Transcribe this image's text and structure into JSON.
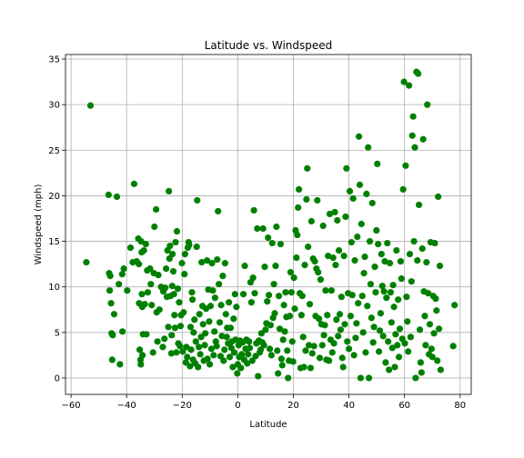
{
  "chart_data": {
    "type": "scatter",
    "title": "Latitude vs. Windspeed",
    "xlabel": "Latitude",
    "ylabel": "Windspeed (mph)",
    "xlim": [
      -62,
      84
    ],
    "ylim": [
      -1.8,
      35.5
    ],
    "xticks": [
      -60,
      -40,
      -20,
      0,
      20,
      40,
      60,
      80
    ],
    "yticks": [
      0,
      5,
      10,
      15,
      20,
      25,
      30,
      35
    ],
    "grid": true,
    "marker_color": "#008000",
    "points": [
      [
        -54.5,
        12.7
      ],
      [
        -53,
        29.9
      ],
      [
        -46.5,
        20.1
      ],
      [
        -46.3,
        11.5
      ],
      [
        -46.1,
        9.6
      ],
      [
        -45.9,
        11.2
      ],
      [
        -45.6,
        8.2
      ],
      [
        -45.4,
        4.9
      ],
      [
        -45.2,
        2.0
      ],
      [
        -45,
        4.7
      ],
      [
        -44.5,
        7.0
      ],
      [
        -43.5,
        19.9
      ],
      [
        -42.8,
        10.3
      ],
      [
        -42.4,
        1.5
      ],
      [
        -41.6,
        11.4
      ],
      [
        -41.5,
        5.1
      ],
      [
        -41,
        12.0
      ],
      [
        -39.8,
        9.6
      ],
      [
        -38.6,
        14.3
      ],
      [
        -37.8,
        12.7
      ],
      [
        -37.3,
        21.3
      ],
      [
        -36.4,
        12.8
      ],
      [
        -35.8,
        15.3
      ],
      [
        -35.6,
        12.5
      ],
      [
        -35.5,
        8.2
      ],
      [
        -35.3,
        3.1
      ],
      [
        -35,
        2.0
      ],
      [
        -34.9,
        1.5
      ],
      [
        -34.8,
        15.0
      ],
      [
        -34.6,
        13.8
      ],
      [
        -34.5,
        9.2
      ],
      [
        -34.4,
        7.8
      ],
      [
        -34.3,
        2.5
      ],
      [
        -34.1,
        4.8
      ],
      [
        -33.8,
        14.0
      ],
      [
        -33.5,
        8.1
      ],
      [
        -33.1,
        14.7
      ],
      [
        -32.9,
        4.8
      ],
      [
        -32.6,
        11.8
      ],
      [
        -32.4,
        9.4
      ],
      [
        -31.6,
        12.0
      ],
      [
        -31.3,
        10.3
      ],
      [
        -31,
        8.0
      ],
      [
        -30.5,
        2.8
      ],
      [
        -30.2,
        11.5
      ],
      [
        -30,
        16.6
      ],
      [
        -29.4,
        18.5
      ],
      [
        -29.2,
        7.2
      ],
      [
        -28.9,
        4.0
      ],
      [
        -28.6,
        11.3
      ],
      [
        -28.2,
        7.5
      ],
      [
        -27.6,
        10.0
      ],
      [
        -27,
        3.4
      ],
      [
        -26.8,
        9.5
      ],
      [
        -26.4,
        4.3
      ],
      [
        -26.1,
        9.9
      ],
      [
        -25.8,
        12.0
      ],
      [
        -25.5,
        8.9
      ],
      [
        -25.3,
        14.0
      ],
      [
        -25,
        5.6
      ],
      [
        -24.8,
        20.5
      ],
      [
        -24.6,
        13.1
      ],
      [
        -24.4,
        14.5
      ],
      [
        -24.2,
        9.0
      ],
      [
        -23.9,
        2.7
      ],
      [
        -23.8,
        4.7
      ],
      [
        -23.6,
        10.1
      ],
      [
        -23.5,
        13.6
      ],
      [
        -23.2,
        11.7
      ],
      [
        -23,
        9.2
      ],
      [
        -22.8,
        6.9
      ],
      [
        -22.6,
        5.5
      ],
      [
        -22.4,
        14.9
      ],
      [
        -22.1,
        2.8
      ],
      [
        -21.9,
        16.1
      ],
      [
        -21.6,
        9.8
      ],
      [
        -21.4,
        3.8
      ],
      [
        -21.1,
        8.3
      ],
      [
        -20.8,
        3.5
      ],
      [
        -20.6,
        5.7
      ],
      [
        -20.4,
        6.9
      ],
      [
        -20.1,
        12.6
      ],
      [
        -19.8,
        2.9
      ],
      [
        -19.5,
        7.2
      ],
      [
        -19.2,
        11.4
      ],
      [
        -19,
        13.6
      ],
      [
        -18.7,
        1.7
      ],
      [
        -18.5,
        3.4
      ],
      [
        -18.2,
        2.3
      ],
      [
        -18,
        14.3
      ],
      [
        -17.7,
        14.9
      ],
      [
        -17.5,
        14.6
      ],
      [
        -17.2,
        1.3
      ],
      [
        -17,
        5.6
      ],
      [
        -16.8,
        3.1
      ],
      [
        -16.5,
        9.4
      ],
      [
        -16.3,
        8.6
      ],
      [
        -16.1,
        2.0
      ],
      [
        -15.9,
        5.0
      ],
      [
        -15.6,
        6.4
      ],
      [
        -15.3,
        1.6
      ],
      [
        -15.1,
        4.0
      ],
      [
        -14.8,
        14.4
      ],
      [
        -14.6,
        19.5
      ],
      [
        -14.3,
        1.2
      ],
      [
        -14,
        3.4
      ],
      [
        -13.8,
        7.0
      ],
      [
        -13.5,
        2.6
      ],
      [
        -13.2,
        4.5
      ],
      [
        -13,
        12.7
      ],
      [
        -12.7,
        7.9
      ],
      [
        -12.5,
        5.9
      ],
      [
        -12.2,
        1.9
      ],
      [
        -11.9,
        3.6
      ],
      [
        -11.7,
        4.9
      ],
      [
        -11.4,
        7.6
      ],
      [
        -11.1,
        12.9
      ],
      [
        -10.9,
        2.1
      ],
      [
        -10.6,
        9.7
      ],
      [
        -10.3,
        6.2
      ],
      [
        -10.1,
        1.5
      ],
      [
        -9.8,
        7.9
      ],
      [
        -9.5,
        3.2
      ],
      [
        -9.3,
        12.6
      ],
      [
        -9,
        9.6
      ],
      [
        -8.7,
        2.5
      ],
      [
        -8.4,
        5.1
      ],
      [
        -8.2,
        8.8
      ],
      [
        -7.9,
        4.0
      ],
      [
        -7.6,
        3.5
      ],
      [
        -7.4,
        13.0
      ],
      [
        -7.1,
        18.3
      ],
      [
        -6.8,
        10.3
      ],
      [
        -6.5,
        6.1
      ],
      [
        -6.2,
        2.4
      ],
      [
        -6,
        8.0
      ],
      [
        -5.7,
        4.6
      ],
      [
        -5.4,
        11.2
      ],
      [
        -5.1,
        1.9
      ],
      [
        -4.8,
        3.1
      ],
      [
        -4.6,
        12.6
      ],
      [
        -4.3,
        7.0
      ],
      [
        -4,
        4.5
      ],
      [
        -3.8,
        5.5
      ],
      [
        -3.5,
        3.8
      ],
      [
        -3.2,
        8.3
      ],
      [
        -2.9,
        2.3
      ],
      [
        -2.6,
        5.5
      ],
      [
        -2.3,
        3.3
      ],
      [
        -2.1,
        4.0
      ],
      [
        -1.8,
        1.2
      ],
      [
        -1.5,
        6.5
      ],
      [
        -1.3,
        2.8
      ],
      [
        -1,
        9.2
      ],
      [
        -0.8,
        4.2
      ],
      [
        -0.5,
        7.8
      ],
      [
        -0.2,
        0.5
      ],
      [
        0,
        1.5
      ],
      [
        0.3,
        3.6
      ],
      [
        0.5,
        2.3
      ],
      [
        0.8,
        4.1
      ],
      [
        1.1,
        1.1
      ],
      [
        1.4,
        2.6
      ],
      [
        1.7,
        3.9
      ],
      [
        2,
        9.2
      ],
      [
        2.3,
        2.0
      ],
      [
        2.5,
        12.3
      ],
      [
        2.8,
        3.2
      ],
      [
        3.1,
        4.2
      ],
      [
        3.4,
        1.6
      ],
      [
        3.7,
        2.6
      ],
      [
        4,
        4.0
      ],
      [
        4.3,
        3.3
      ],
      [
        4.6,
        10.5
      ],
      [
        4.9,
        8.3
      ],
      [
        5.2,
        1.9
      ],
      [
        5.5,
        11.0
      ],
      [
        5.8,
        18.4
      ],
      [
        6.1,
        9.3
      ],
      [
        6.4,
        2.4
      ],
      [
        6.7,
        3.8
      ],
      [
        7,
        16.4
      ],
      [
        7.3,
        0.2
      ],
      [
        7.6,
        4.1
      ],
      [
        7.9,
        2.8
      ],
      [
        8.2,
        3.1
      ],
      [
        8.5,
        4.9
      ],
      [
        8.8,
        3.9
      ],
      [
        9.1,
        16.4
      ],
      [
        9.4,
        3.6
      ],
      [
        9.7,
        12.2
      ],
      [
        10,
        5.3
      ],
      [
        10.3,
        6.0
      ],
      [
        10.6,
        8.4
      ],
      [
        10.9,
        15.4
      ],
      [
        11.2,
        9.1
      ],
      [
        11.5,
        3.2
      ],
      [
        11.8,
        5.8
      ],
      [
        12.1,
        2.5
      ],
      [
        12.4,
        14.8
      ],
      [
        12.7,
        6.6
      ],
      [
        13,
        10.3
      ],
      [
        13.3,
        7.1
      ],
      [
        13.6,
        12.3
      ],
      [
        13.9,
        16.6
      ],
      [
        14.2,
        3.0
      ],
      [
        14.5,
        0.5
      ],
      [
        14.8,
        9.0
      ],
      [
        15.1,
        5.4
      ],
      [
        15.4,
        14.7
      ],
      [
        15.7,
        2.1
      ],
      [
        16,
        1.4
      ],
      [
        16.3,
        4.2
      ],
      [
        16.6,
        8.0
      ],
      [
        16.9,
        5.1
      ],
      [
        17.2,
        9.4
      ],
      [
        17.5,
        6.7
      ],
      [
        17.8,
        3.0
      ],
      [
        18.1,
        0.0
      ],
      [
        18.4,
        1.9
      ],
      [
        18.7,
        6.8
      ],
      [
        19,
        11.6
      ],
      [
        19.3,
        9.4
      ],
      [
        19.6,
        4.0
      ],
      [
        19.9,
        1.8
      ],
      [
        20.2,
        11.0
      ],
      [
        20.5,
        7.6
      ],
      [
        20.8,
        16.2
      ],
      [
        21.1,
        13.2
      ],
      [
        21.4,
        15.7
      ],
      [
        21.7,
        18.7
      ],
      [
        22,
        20.7
      ],
      [
        22.3,
        9.3
      ],
      [
        22.6,
        1.1
      ],
      [
        22.9,
        6.9
      ],
      [
        23.2,
        9.0
      ],
      [
        23.5,
        4.5
      ],
      [
        23.8,
        1.2
      ],
      [
        24.1,
        12.4
      ],
      [
        24.4,
        3.0
      ],
      [
        24.7,
        19.6
      ],
      [
        25,
        23.0
      ],
      [
        25.3,
        14.4
      ],
      [
        25.6,
        3.6
      ],
      [
        25.9,
        8.1
      ],
      [
        26.2,
        1.1
      ],
      [
        26.5,
        17.2
      ],
      [
        26.8,
        2.7
      ],
      [
        27.1,
        13.1
      ],
      [
        27.4,
        3.5
      ],
      [
        27.7,
        12.8
      ],
      [
        28,
        6.8
      ],
      [
        28.3,
        12.0
      ],
      [
        28.6,
        19.5
      ],
      [
        28.9,
        11.6
      ],
      [
        29.2,
        6.5
      ],
      [
        29.5,
        2.2
      ],
      [
        29.8,
        10.8
      ],
      [
        30.1,
        5.9
      ],
      [
        30.4,
        3.6
      ],
      [
        30.7,
        16.7
      ],
      [
        31,
        4.7
      ],
      [
        31.3,
        5.8
      ],
      [
        31.6,
        9.6
      ],
      [
        31.9,
        2.0
      ],
      [
        32.2,
        6.9
      ],
      [
        32.5,
        13.4
      ],
      [
        32.8,
        1.9
      ],
      [
        33.1,
        18.0
      ],
      [
        33.4,
        4.2
      ],
      [
        33.7,
        9.6
      ],
      [
        34,
        2.8
      ],
      [
        34.3,
        13.2
      ],
      [
        34.6,
        3.8
      ],
      [
        34.9,
        18.2
      ],
      [
        35.2,
        12.4
      ],
      [
        35.5,
        6.4
      ],
      [
        35.8,
        17.3
      ],
      [
        36.1,
        4.6
      ],
      [
        36.4,
        14.0
      ],
      [
        36.7,
        7.0
      ],
      [
        37,
        5.3
      ],
      [
        37.3,
        8.9
      ],
      [
        37.6,
        2.2
      ],
      [
        37.9,
        1.2
      ],
      [
        38.2,
        13.4
      ],
      [
        38.5,
        5.9
      ],
      [
        38.8,
        17.7
      ],
      [
        39.1,
        23.0
      ],
      [
        39.4,
        4.0
      ],
      [
        39.7,
        9.3
      ],
      [
        40,
        3.2
      ],
      [
        40.3,
        20.5
      ],
      [
        40.6,
        6.8
      ],
      [
        40.9,
        14.9
      ],
      [
        41.2,
        9.1
      ],
      [
        41.5,
        19.7
      ],
      [
        41.8,
        2.5
      ],
      [
        42.1,
        12.9
      ],
      [
        42.4,
        4.4
      ],
      [
        42.7,
        6.0
      ],
      [
        43,
        15.5
      ],
      [
        43.3,
        8.2
      ],
      [
        43.6,
        26.5
      ],
      [
        43.9,
        21.2
      ],
      [
        44.2,
        0.0
      ],
      [
        44.5,
        16.9
      ],
      [
        44.8,
        9.0
      ],
      [
        45.1,
        5.0
      ],
      [
        45.4,
        11.5
      ],
      [
        45.7,
        13.3
      ],
      [
        46,
        2.8
      ],
      [
        46.3,
        20.2
      ],
      [
        46.6,
        7.9
      ],
      [
        46.9,
        25.3
      ],
      [
        47.2,
        0.0
      ],
      [
        47.5,
        15.0
      ],
      [
        47.8,
        10.3
      ],
      [
        48.1,
        6.6
      ],
      [
        48.4,
        19.2
      ],
      [
        48.7,
        3.9
      ],
      [
        49,
        5.6
      ],
      [
        49.3,
        12.2
      ],
      [
        49.6,
        9.4
      ],
      [
        49.9,
        16.2
      ],
      [
        50.2,
        23.5
      ],
      [
        50.5,
        14.7
      ],
      [
        50.8,
        2.9
      ],
      [
        51.1,
        5.2
      ],
      [
        51.4,
        7.1
      ],
      [
        51.7,
        13.6
      ],
      [
        52,
        10.1
      ],
      [
        52.3,
        4.6
      ],
      [
        52.6,
        9.5
      ],
      [
        52.9,
        12.8
      ],
      [
        53.2,
        1.7
      ],
      [
        53.5,
        8.8
      ],
      [
        53.8,
        14.8
      ],
      [
        54.1,
        4.0
      ],
      [
        54.4,
        0.9
      ],
      [
        54.7,
        12.6
      ],
      [
        55,
        9.4
      ],
      [
        55.3,
        6.1
      ],
      [
        55.6,
        3.3
      ],
      [
        55.9,
        10.2
      ],
      [
        56.2,
        7.8
      ],
      [
        56.5,
        1.2
      ],
      [
        56.8,
        4.8
      ],
      [
        57.1,
        14.0
      ],
      [
        57.4,
        3.6
      ],
      [
        57.7,
        8.6
      ],
      [
        58,
        2.3
      ],
      [
        58.3,
        5.4
      ],
      [
        58.6,
        12.8
      ],
      [
        58.9,
        10.9
      ],
      [
        59.2,
        4.3
      ],
      [
        59.5,
        20.7
      ],
      [
        59.8,
        32.5
      ],
      [
        60.1,
        3.8
      ],
      [
        60.4,
        23.3
      ],
      [
        60.7,
        8.9
      ],
      [
        61,
        6.2
      ],
      [
        61.3,
        2.9
      ],
      [
        61.6,
        32.1
      ],
      [
        61.9,
        13.6
      ],
      [
        62.2,
        4.5
      ],
      [
        62.5,
        10.6
      ],
      [
        62.8,
        26.6
      ],
      [
        63.1,
        28.7
      ],
      [
        63.4,
        15.0
      ],
      [
        63.7,
        25.3
      ],
      [
        64,
        0.0
      ],
      [
        64.3,
        33.6
      ],
      [
        64.6,
        12.9
      ],
      [
        64.9,
        33.4
      ],
      [
        65.2,
        19.0
      ],
      [
        65.5,
        5.3
      ],
      [
        65.8,
        1.7
      ],
      [
        66.1,
        0.6
      ],
      [
        66.4,
        14.2
      ],
      [
        66.7,
        26.2
      ],
      [
        67,
        9.5
      ],
      [
        67.3,
        6.8
      ],
      [
        67.6,
        3.6
      ],
      [
        67.9,
        12.7
      ],
      [
        68.2,
        30.0
      ],
      [
        68.5,
        9.3
      ],
      [
        68.8,
        2.6
      ],
      [
        69.1,
        5.9
      ],
      [
        69.4,
        14.9
      ],
      [
        69.7,
        3.2
      ],
      [
        70,
        2.3
      ],
      [
        70.3,
        9.0
      ],
      [
        70.6,
        4.9
      ],
      [
        70.9,
        14.8
      ],
      [
        71.2,
        8.7
      ],
      [
        71.5,
        7.4
      ],
      [
        71.8,
        1.9
      ],
      [
        72.1,
        19.9
      ],
      [
        72.4,
        5.4
      ],
      [
        72.7,
        12.3
      ],
      [
        73,
        0.9
      ],
      [
        77.5,
        3.5
      ],
      [
        78,
        8.0
      ]
    ]
  }
}
